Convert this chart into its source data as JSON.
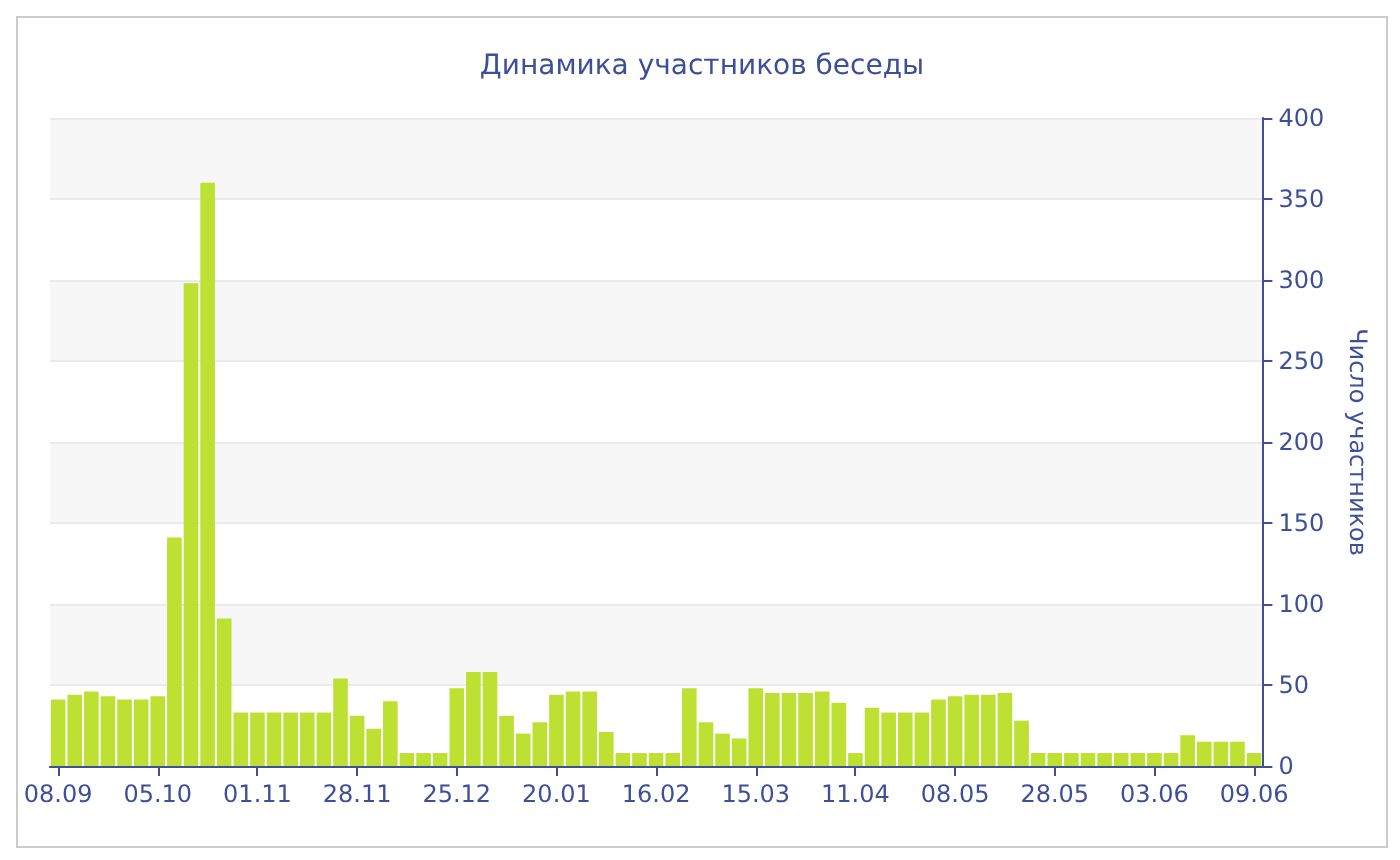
{
  "chart_data": {
    "type": "bar",
    "title": "Динамика участников беседы",
    "ylabel": "Число участников",
    "categories": [
      "08.09",
      null,
      null,
      null,
      null,
      null,
      "05.10",
      null,
      null,
      null,
      null,
      null,
      "01.11",
      null,
      null,
      null,
      null,
      null,
      "28.11",
      null,
      null,
      null,
      null,
      null,
      "25.12",
      null,
      null,
      null,
      null,
      null,
      "20.01",
      null,
      null,
      null,
      null,
      null,
      "16.02",
      null,
      null,
      null,
      null,
      null,
      "15.03",
      null,
      null,
      null,
      null,
      null,
      "11.04",
      null,
      null,
      null,
      null,
      null,
      "08.05",
      null,
      null,
      null,
      null,
      null,
      "28.05",
      null,
      null,
      null,
      null,
      null,
      "03.06",
      null,
      null,
      null,
      null,
      null,
      "09.06"
    ],
    "values": [
      41,
      44,
      46,
      43,
      41,
      41,
      43,
      141,
      298,
      360,
      91,
      33,
      33,
      33,
      33,
      33,
      33,
      54,
      31,
      23,
      40,
      8,
      8,
      8,
      48,
      58,
      58,
      31,
      20,
      27,
      44,
      46,
      46,
      21,
      8,
      8,
      8,
      8,
      48,
      27,
      20,
      17,
      48,
      45,
      45,
      45,
      46,
      39,
      8,
      36,
      33,
      33,
      33,
      41,
      43,
      44,
      44,
      45,
      28,
      8,
      8,
      8,
      8,
      8,
      8,
      8,
      8,
      8,
      19,
      15,
      15,
      15,
      8
    ],
    "color": "#bde033",
    "ylim": [
      0,
      400
    ],
    "yticks": [
      0,
      50,
      100,
      150,
      200,
      250,
      300,
      350,
      400
    ],
    "grid": "y"
  }
}
